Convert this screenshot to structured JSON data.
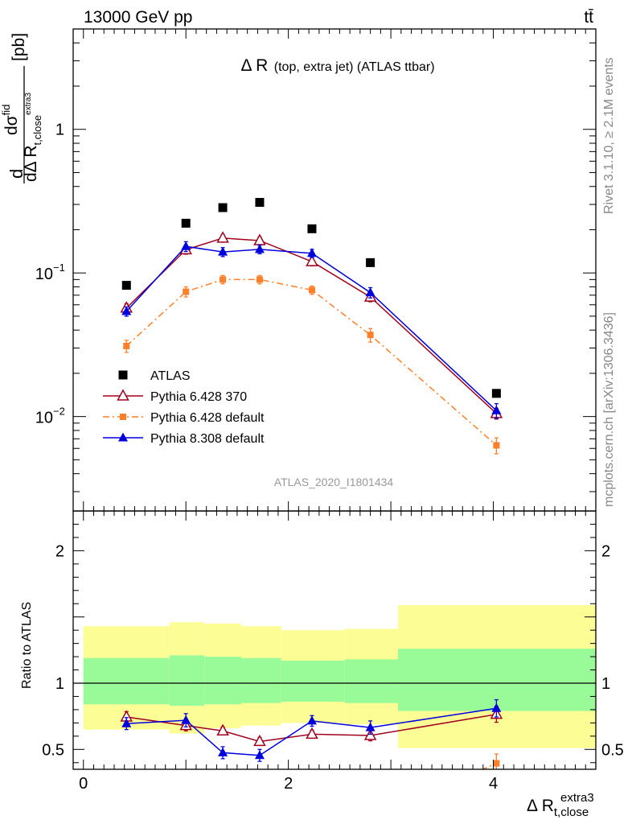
{
  "header": {
    "energy_label": "13000 GeV pp",
    "process_label": "tt̄",
    "rivet_label": "Rivet 3.1.10, ≥ 2.1M events",
    "source_label": "mcplots.cern.ch [arXiv:1306.3436]",
    "analysis_label": "ATLAS_2020_I1801434"
  },
  "chart_data": [
    {
      "type": "scatter",
      "panel": "main",
      "title_main": "Δ R",
      "title_sub": "(top, extra jet) (ATLAS ttbar)",
      "ylabel_prefix": "d",
      "ylabel_num": "dσ",
      "ylabel_num_sup": "fid",
      "ylabel_den": "dΔ R",
      "ylabel_den_sub": "t,close",
      "ylabel_den_sup": "extra3",
      "ylabel_unit": "[pb]",
      "y_scale": "log",
      "ylim": [
        0.0022,
        5.0
      ],
      "xlim": [
        -0.1,
        5.0
      ],
      "y_ticks": [
        {
          "value": 1,
          "label": "1"
        },
        {
          "value": 0.1,
          "label": "10",
          "exp": "−1"
        },
        {
          "value": 0.01,
          "label": "10",
          "exp": "−2"
        }
      ],
      "legend_position": "lower-left",
      "series": [
        {
          "name": "ATLAS",
          "color": "#000000",
          "marker": "square",
          "line": "none",
          "x": [
            0.42,
            1.0,
            1.36,
            1.72,
            2.23,
            2.8,
            4.03
          ],
          "y": [
            0.082,
            0.222,
            0.285,
            0.31,
            0.203,
            0.118,
            0.0145
          ]
        },
        {
          "name": "Pythia 6.428 370",
          "color": "#a0001e",
          "marker": "open-triangle",
          "line": "solid",
          "x": [
            0.42,
            1.0,
            1.36,
            1.72,
            2.23,
            2.8,
            4.03
          ],
          "y": [
            0.057,
            0.145,
            0.175,
            0.168,
            0.12,
            0.068,
            0.0105
          ],
          "err": [
            0.004,
            0.01,
            0.01,
            0.01,
            0.008,
            0.005,
            0.0009
          ]
        },
        {
          "name": "Pythia 6.428 default",
          "color": "#ff7f2a",
          "marker": "filled-square",
          "line": "dashdot",
          "x": [
            0.42,
            1.0,
            1.36,
            1.72,
            2.23,
            2.8,
            4.03
          ],
          "y": [
            0.031,
            0.074,
            0.09,
            0.09,
            0.076,
            0.037,
            0.0063
          ],
          "err": [
            0.003,
            0.006,
            0.006,
            0.006,
            0.005,
            0.004,
            0.0008
          ]
        },
        {
          "name": "Pythia 8.308 default",
          "color": "#0000dd",
          "marker": "filled-triangle",
          "line": "solid",
          "x": [
            0.42,
            1.0,
            1.36,
            1.72,
            2.23,
            2.8,
            4.03
          ],
          "y": [
            0.054,
            0.153,
            0.14,
            0.146,
            0.137,
            0.073,
            0.011
          ],
          "err": [
            0.004,
            0.012,
            0.01,
            0.01,
            0.009,
            0.006,
            0.0013
          ]
        }
      ]
    },
    {
      "type": "scatter",
      "panel": "ratio",
      "ylabel": "Ratio to ATLAS",
      "xlabel_main": "Δ R",
      "xlabel_sub": "t,close",
      "xlabel_sup": "extra3",
      "xlim": [
        -0.1,
        5.0
      ],
      "ylim": [
        0.35,
        2.3
      ],
      "x_ticks": [
        0,
        2,
        4
      ],
      "y_ticks": [
        0.5,
        1,
        2
      ],
      "reference_line": 1,
      "bands": [
        {
          "x0": 0.0,
          "x1": 0.84,
          "inner": [
            0.84,
            1.19
          ],
          "outer": [
            0.65,
            1.43
          ]
        },
        {
          "x0": 0.84,
          "x1": 1.18,
          "inner": [
            0.83,
            1.21
          ],
          "outer": [
            0.62,
            1.46
          ]
        },
        {
          "x0": 1.18,
          "x1": 1.54,
          "inner": [
            0.84,
            1.2
          ],
          "outer": [
            0.66,
            1.45
          ]
        },
        {
          "x0": 1.54,
          "x1": 1.93,
          "inner": [
            0.85,
            1.19
          ],
          "outer": [
            0.68,
            1.43
          ]
        },
        {
          "x0": 1.93,
          "x1": 2.55,
          "inner": [
            0.86,
            1.17
          ],
          "outer": [
            0.7,
            1.4
          ]
        },
        {
          "x0": 2.55,
          "x1": 3.07,
          "inner": [
            0.85,
            1.18
          ],
          "outer": [
            0.69,
            1.41
          ]
        },
        {
          "x0": 3.07,
          "x1": 5.0,
          "inner": [
            0.79,
            1.26
          ],
          "outer": [
            0.51,
            1.59
          ]
        }
      ],
      "series": [
        {
          "name": "Pythia 6.428 370",
          "color": "#a0001e",
          "marker": "open-triangle",
          "line": "solid",
          "x": [
            0.42,
            1.0,
            1.36,
            1.72,
            2.23,
            2.8,
            4.03
          ],
          "y": [
            0.745,
            0.68,
            0.64,
            0.56,
            0.615,
            0.605,
            0.765
          ],
          "err": [
            0.04,
            0.04,
            0.03,
            0.03,
            0.03,
            0.04,
            0.06
          ]
        },
        {
          "name": "Pythia 6.428 default",
          "color": "#ff7f2a",
          "marker": "filled-square",
          "line": "dashdot",
          "x": [
            3.75,
            4.03
          ],
          "y": [
            0.3,
            0.395
          ],
          "err": [
            0.0,
            0.07
          ],
          "visible_points": [
            false,
            true
          ]
        },
        {
          "name": "Pythia 8.308 default",
          "color": "#0000dd",
          "marker": "filled-triangle",
          "line": "solid",
          "x": [
            0.42,
            1.0,
            1.36,
            1.72,
            2.23,
            2.8,
            4.03
          ],
          "y": [
            0.695,
            0.72,
            0.475,
            0.455,
            0.715,
            0.665,
            0.81
          ],
          "err": [
            0.045,
            0.05,
            0.045,
            0.045,
            0.04,
            0.05,
            0.065
          ]
        }
      ]
    }
  ]
}
